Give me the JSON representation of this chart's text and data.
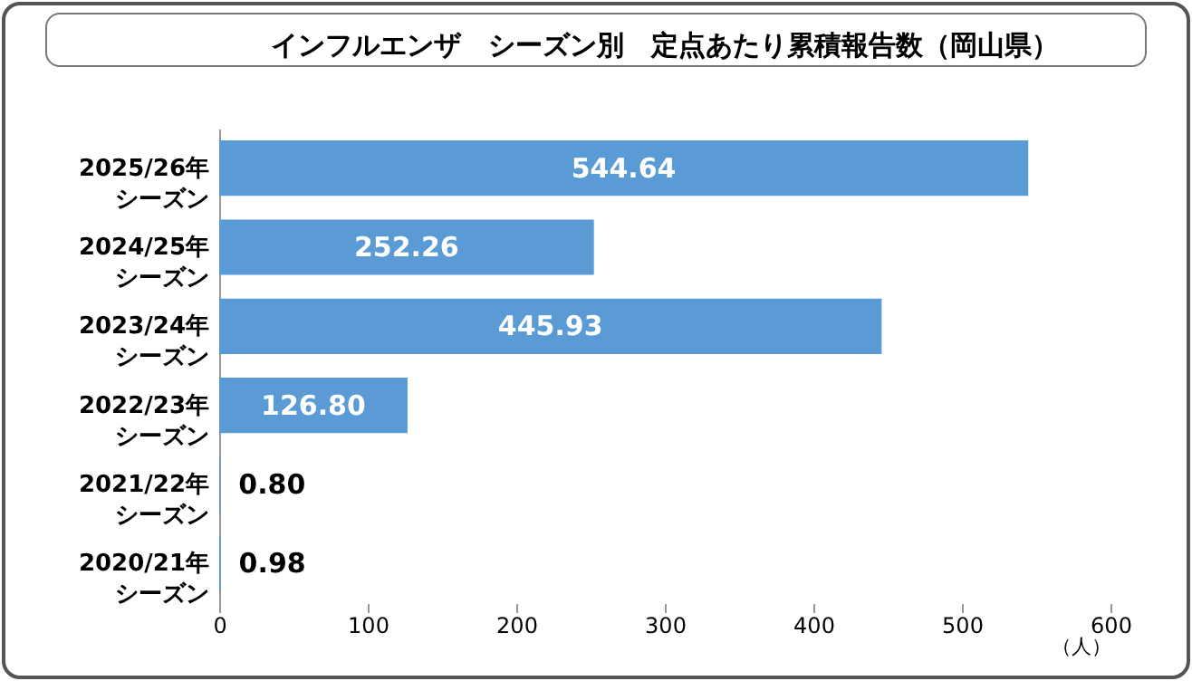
{
  "chart_data": {
    "type": "bar",
    "orientation": "horizontal",
    "title": "インフルエンザ　シーズン別　定点あたり累積報告数（岡山県）",
    "xlabel": "（人）",
    "categories": [
      "2025/26年シーズン",
      "2024/25年シーズン",
      "2023/24年シーズン",
      "2022/23年シーズン",
      "2021/22年シーズン",
      "2020/21年シーズン"
    ],
    "values": [
      544.64,
      252.26,
      445.93,
      126.8,
      0.8,
      0.98
    ],
    "value_labels": [
      "544.64",
      "252.26",
      "445.93",
      "126.80",
      "0.80",
      "0.98"
    ],
    "color": "#5b9bd5",
    "xlim": [
      0,
      600
    ],
    "xticks": [
      0,
      100,
      200,
      300,
      400,
      500,
      600
    ],
    "grid": false
  }
}
